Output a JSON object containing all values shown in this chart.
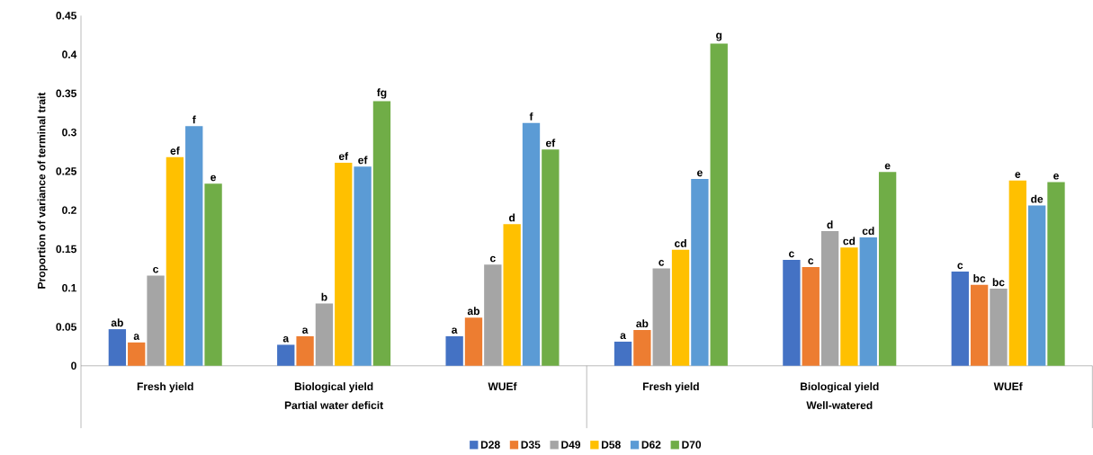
{
  "chart_data": {
    "type": "bar",
    "ylabel": "Proportion of variance of terminal trait",
    "categories": [
      "Fresh yield",
      "Biological yield",
      "WUEf",
      "Fresh yield",
      "Biological yield",
      "WUEf"
    ],
    "annotations": [
      "Partial water deficit",
      "Well-watered"
    ],
    "ylim": [
      0,
      0.45
    ],
    "yticks": [
      0,
      0.05,
      0.1,
      0.15,
      0.2,
      0.25,
      0.3,
      0.35,
      0.4,
      0.45
    ],
    "legend": "bottom",
    "series": [
      {
        "name": "D28",
        "color": "#4472c4",
        "values": [
          0.047,
          0.027,
          0.038,
          0.031,
          0.136,
          0.121
        ],
        "value_labels": [
          "ab",
          "a",
          "a",
          "a",
          "c",
          "c"
        ]
      },
      {
        "name": "D35",
        "color": "#ed7d31",
        "values": [
          0.03,
          0.038,
          0.062,
          0.046,
          0.127,
          0.104
        ],
        "value_labels": [
          "a",
          "a",
          "ab",
          "ab",
          "c",
          "bc"
        ]
      },
      {
        "name": "D49",
        "color": "#a5a5a5",
        "values": [
          0.116,
          0.08,
          0.13,
          0.125,
          0.173,
          0.099
        ],
        "value_labels": [
          "c",
          "b",
          "c",
          "c",
          "d",
          "bc"
        ]
      },
      {
        "name": "D58",
        "color": "#ffc000",
        "values": [
          0.268,
          0.261,
          0.182,
          0.149,
          0.152,
          0.238
        ],
        "value_labels": [
          "ef",
          "ef",
          "d",
          "cd",
          "cd",
          "e"
        ]
      },
      {
        "name": "D62",
        "color": "#5b9bd5",
        "values": [
          0.308,
          0.256,
          0.312,
          0.24,
          0.165,
          0.206
        ],
        "value_labels": [
          "f",
          "ef",
          "f",
          "e",
          "cd",
          "de"
        ]
      },
      {
        "name": "D70",
        "color": "#70ad47",
        "values": [
          0.234,
          0.34,
          0.278,
          0.414,
          0.249,
          0.236
        ],
        "value_labels": [
          "e",
          "fg",
          "ef",
          "g",
          "e",
          "e"
        ]
      }
    ]
  }
}
